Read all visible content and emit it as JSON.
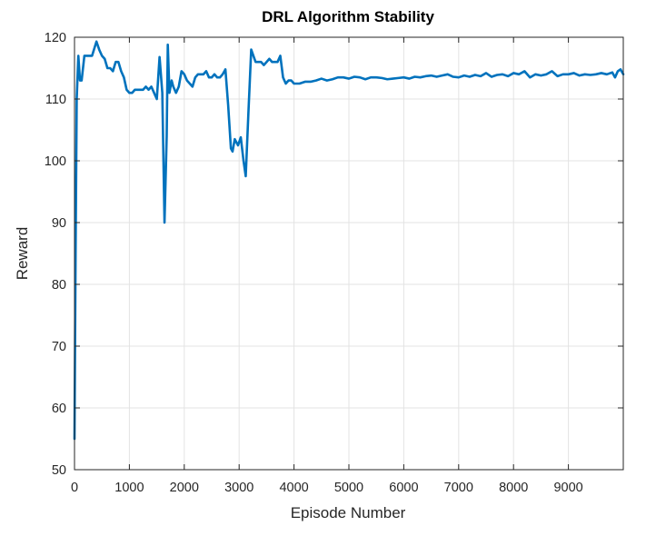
{
  "chart_data": {
    "type": "line",
    "title": "DRL Algorithm Stability",
    "xlabel": "Episode Number",
    "ylabel": "Reward",
    "xlim": [
      0,
      10000
    ],
    "ylim": [
      50,
      120
    ],
    "grid": true,
    "x_ticks": [
      0,
      1000,
      2000,
      3000,
      4000,
      5000,
      6000,
      7000,
      8000,
      9000
    ],
    "y_ticks": [
      50,
      60,
      70,
      80,
      90,
      100,
      110,
      120
    ],
    "line_color": "#0072BD",
    "series": [
      {
        "points": [
          [
            0,
            55
          ],
          [
            20,
            85
          ],
          [
            40,
            110
          ],
          [
            70,
            117
          ],
          [
            100,
            113
          ],
          [
            130,
            113
          ],
          [
            180,
            117
          ],
          [
            250,
            117
          ],
          [
            320,
            117
          ],
          [
            400,
            119.3
          ],
          [
            450,
            118
          ],
          [
            500,
            117
          ],
          [
            550,
            116.5
          ],
          [
            600,
            115
          ],
          [
            650,
            115
          ],
          [
            700,
            114.5
          ],
          [
            750,
            116
          ],
          [
            800,
            116
          ],
          [
            850,
            114.5
          ],
          [
            900,
            113.5
          ],
          [
            950,
            111.5
          ],
          [
            1000,
            111
          ],
          [
            1050,
            111
          ],
          [
            1100,
            111.5
          ],
          [
            1150,
            111.5
          ],
          [
            1200,
            111.5
          ],
          [
            1250,
            111.5
          ],
          [
            1300,
            112
          ],
          [
            1350,
            111.5
          ],
          [
            1400,
            112
          ],
          [
            1450,
            111
          ],
          [
            1500,
            110
          ],
          [
            1550,
            116.8
          ],
          [
            1600,
            111
          ],
          [
            1640,
            90
          ],
          [
            1680,
            104
          ],
          [
            1700,
            118.8
          ],
          [
            1730,
            111
          ],
          [
            1770,
            113
          ],
          [
            1800,
            112
          ],
          [
            1850,
            111
          ],
          [
            1900,
            112
          ],
          [
            1950,
            114.5
          ],
          [
            2000,
            114
          ],
          [
            2050,
            113
          ],
          [
            2100,
            112.5
          ],
          [
            2150,
            112
          ],
          [
            2200,
            113.5
          ],
          [
            2250,
            114
          ],
          [
            2300,
            114
          ],
          [
            2350,
            114
          ],
          [
            2400,
            114.5
          ],
          [
            2450,
            113.5
          ],
          [
            2500,
            113.5
          ],
          [
            2550,
            114
          ],
          [
            2600,
            113.5
          ],
          [
            2650,
            113.5
          ],
          [
            2700,
            114
          ],
          [
            2750,
            114.8
          ],
          [
            2800,
            109
          ],
          [
            2850,
            102
          ],
          [
            2880,
            101.5
          ],
          [
            2920,
            103.5
          ],
          [
            2980,
            102.5
          ],
          [
            3030,
            103.8
          ],
          [
            3080,
            100
          ],
          [
            3120,
            97.5
          ],
          [
            3170,
            108
          ],
          [
            3200,
            114
          ],
          [
            3220,
            118
          ],
          [
            3260,
            117
          ],
          [
            3300,
            116
          ],
          [
            3350,
            116
          ],
          [
            3400,
            116
          ],
          [
            3450,
            115.5
          ],
          [
            3500,
            116
          ],
          [
            3550,
            116.5
          ],
          [
            3600,
            116
          ],
          [
            3650,
            116
          ],
          [
            3700,
            116
          ],
          [
            3750,
            117
          ],
          [
            3800,
            113.5
          ],
          [
            3850,
            112.5
          ],
          [
            3900,
            113
          ],
          [
            3950,
            113
          ],
          [
            4000,
            112.5
          ],
          [
            4100,
            112.5
          ],
          [
            4200,
            112.8
          ],
          [
            4300,
            112.8
          ],
          [
            4400,
            113
          ],
          [
            4500,
            113.3
          ],
          [
            4600,
            113
          ],
          [
            4700,
            113.2
          ],
          [
            4800,
            113.5
          ],
          [
            4900,
            113.5
          ],
          [
            5000,
            113.3
          ],
          [
            5100,
            113.6
          ],
          [
            5200,
            113.5
          ],
          [
            5300,
            113.2
          ],
          [
            5400,
            113.5
          ],
          [
            5500,
            113.5
          ],
          [
            5600,
            113.4
          ],
          [
            5700,
            113.2
          ],
          [
            5800,
            113.3
          ],
          [
            5900,
            113.4
          ],
          [
            6000,
            113.5
          ],
          [
            6100,
            113.3
          ],
          [
            6200,
            113.6
          ],
          [
            6300,
            113.5
          ],
          [
            6400,
            113.7
          ],
          [
            6500,
            113.8
          ],
          [
            6600,
            113.6
          ],
          [
            6700,
            113.8
          ],
          [
            6800,
            114
          ],
          [
            6900,
            113.6
          ],
          [
            7000,
            113.5
          ],
          [
            7100,
            113.8
          ],
          [
            7200,
            113.6
          ],
          [
            7300,
            113.9
          ],
          [
            7400,
            113.7
          ],
          [
            7500,
            114.2
          ],
          [
            7600,
            113.6
          ],
          [
            7700,
            113.9
          ],
          [
            7800,
            114
          ],
          [
            7900,
            113.7
          ],
          [
            8000,
            114.2
          ],
          [
            8100,
            114
          ],
          [
            8200,
            114.5
          ],
          [
            8300,
            113.5
          ],
          [
            8400,
            114
          ],
          [
            8500,
            113.8
          ],
          [
            8600,
            114
          ],
          [
            8700,
            114.5
          ],
          [
            8800,
            113.7
          ],
          [
            8900,
            114
          ],
          [
            9000,
            114
          ],
          [
            9100,
            114.2
          ],
          [
            9200,
            113.8
          ],
          [
            9300,
            114
          ],
          [
            9400,
            113.9
          ],
          [
            9500,
            114
          ],
          [
            9600,
            114.2
          ],
          [
            9700,
            114
          ],
          [
            9800,
            114.3
          ],
          [
            9850,
            113.5
          ],
          [
            9900,
            114.5
          ],
          [
            9950,
            114.8
          ],
          [
            10000,
            114
          ]
        ]
      }
    ]
  }
}
